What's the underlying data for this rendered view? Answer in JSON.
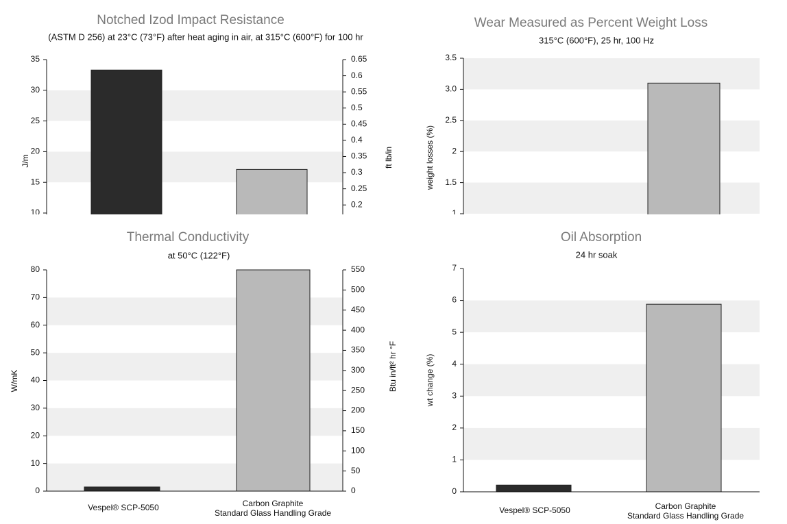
{
  "chart_data": [
    {
      "type": "bar",
      "title": "Notched Izod Impact Resistance",
      "subtitle": "(ASTM D 256) at 23°C (73°F) after heat aging in air, at 315°C (600°F) for 100 hr",
      "ylabel": "J/m",
      "y2label": "ft lb/in",
      "categories": [
        null,
        null
      ],
      "values": [
        33.3,
        17.1
      ],
      "colors": [
        "#2b2b2b",
        "#b9b9b9"
      ],
      "ylim": [
        10,
        35
      ],
      "yticks": [
        10,
        15,
        20,
        25,
        30,
        35
      ],
      "y2lim": [
        0.175,
        0.65
      ],
      "y2ticks": [
        0.2,
        0.25,
        0.3,
        0.35,
        0.4,
        0.45,
        0.5,
        0.55,
        0.6,
        0.65
      ],
      "grid": "bands"
    },
    {
      "type": "bar",
      "title": "Wear Measured as Percent Weight Loss",
      "subtitle": "315°C (600°F), 25 hr, 100 Hz",
      "ylabel": "weight losses (%)",
      "categories": [
        null,
        null
      ],
      "values": [
        null,
        3.1
      ],
      "colors": [
        "#2b2b2b",
        "#b9b9b9"
      ],
      "ylim": [
        1,
        3.5
      ],
      "yticks": [
        1,
        1.5,
        2,
        {
          "value": 2.5,
          "label": "2.5"
        },
        {
          "value": 3,
          "label": "3.0"
        },
        3.5
      ],
      "grid": "bands"
    },
    {
      "type": "bar",
      "title": "Thermal Conductivity",
      "subtitle": "at 50°C (122°F)",
      "ylabel": "W/mK",
      "y2label": "Btu in/ft² hr °F",
      "categories": [
        "Vespel® SCP-5050",
        "Carbon Graphite\nStandard Glass Handling Grade"
      ],
      "values": [
        1.5,
        80
      ],
      "colors": [
        "#2b2b2b",
        "#b9b9b9"
      ],
      "ylim": [
        0,
        80
      ],
      "yticks": [
        0,
        10,
        20,
        30,
        40,
        50,
        60,
        70,
        80
      ],
      "y2lim": [
        0,
        550
      ],
      "y2ticks": [
        0,
        50,
        100,
        150,
        200,
        250,
        300,
        350,
        400,
        450,
        500,
        550
      ],
      "grid": "bands"
    },
    {
      "type": "bar",
      "title": "Oil Absorption",
      "subtitle": "24 hr soak",
      "ylabel": "wt change (%)",
      "categories": [
        "Vespel® SCP-5050",
        "Carbon Graphite\nStandard Glass Handling Grade"
      ],
      "values": [
        0.21,
        5.88
      ],
      "colors": [
        "#2b2b2b",
        "#b9b9b9"
      ],
      "ylim": [
        0,
        7
      ],
      "yticks": [
        0,
        1,
        2,
        3,
        4,
        5,
        6,
        7
      ],
      "grid": "bands"
    }
  ]
}
